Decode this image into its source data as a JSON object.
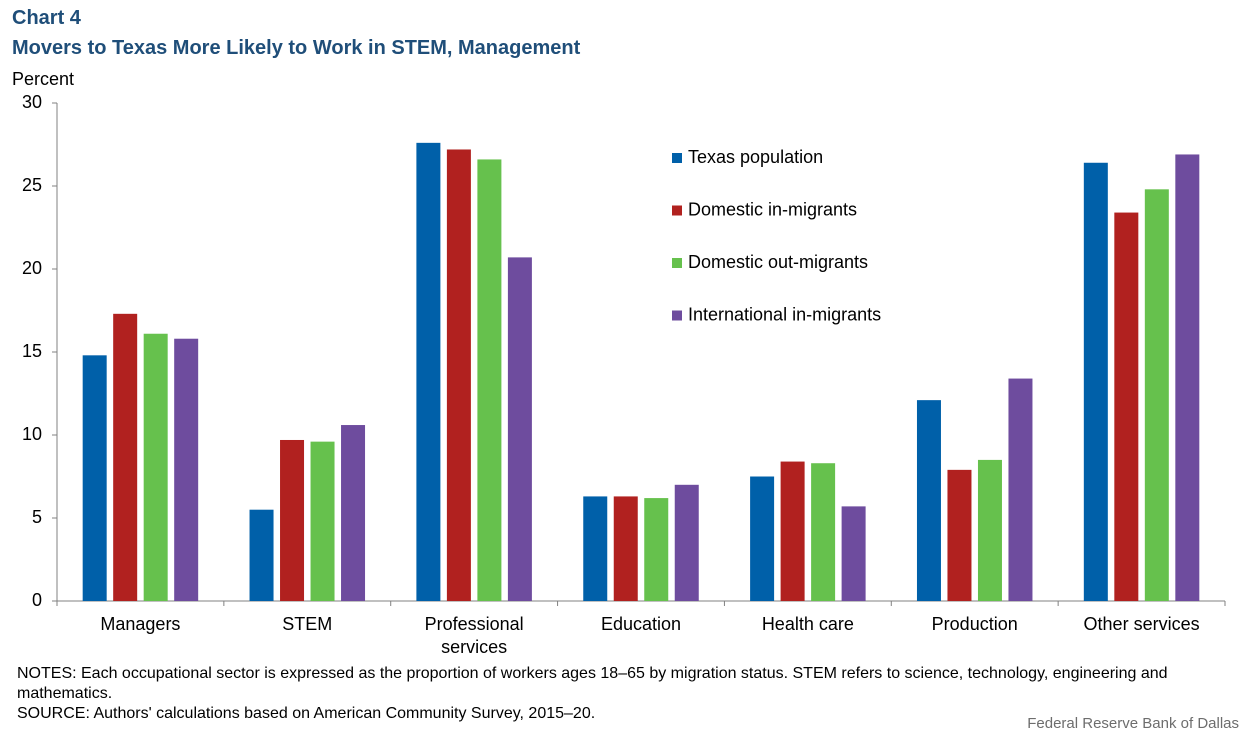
{
  "chart_data": {
    "type": "bar",
    "label": "Chart 4",
    "title": "Movers to Texas More Likely to Work in STEM, Management",
    "y_label": "Percent",
    "categories": [
      "Managers",
      "STEM",
      "Professional services",
      "Education",
      "Health care",
      "Production",
      "Other services"
    ],
    "series": [
      {
        "name": "Texas population",
        "color": "#0060a9",
        "values": [
          14.8,
          5.5,
          27.6,
          6.3,
          7.5,
          12.1,
          26.4
        ]
      },
      {
        "name": "Domestic in-migrants",
        "color": "#b1211f",
        "values": [
          17.3,
          9.7,
          27.2,
          6.3,
          8.4,
          7.9,
          23.4
        ]
      },
      {
        "name": "Domestic out-migrants",
        "color": "#66c14d",
        "values": [
          16.1,
          9.6,
          26.6,
          6.2,
          8.3,
          8.5,
          24.8
        ]
      },
      {
        "name": "International in-migrants",
        "color": "#6e4c9e",
        "values": [
          15.8,
          10.6,
          20.7,
          7.0,
          5.7,
          13.4,
          26.9
        ]
      }
    ],
    "ylim": [
      0,
      30
    ],
    "yticks": [
      0,
      5,
      10,
      15,
      20,
      25,
      30
    ],
    "grid": false,
    "legend_position": "top-right",
    "notes": "NOTES: Each occupational sector is expressed as the proportion of workers ages 18–65 by migration status. STEM refers to science, technology, engineering and mathematics.",
    "source": "SOURCE: Authors' calculations based on American Community Survey, 2015–20.",
    "credit": "Federal Reserve Bank of Dallas"
  }
}
